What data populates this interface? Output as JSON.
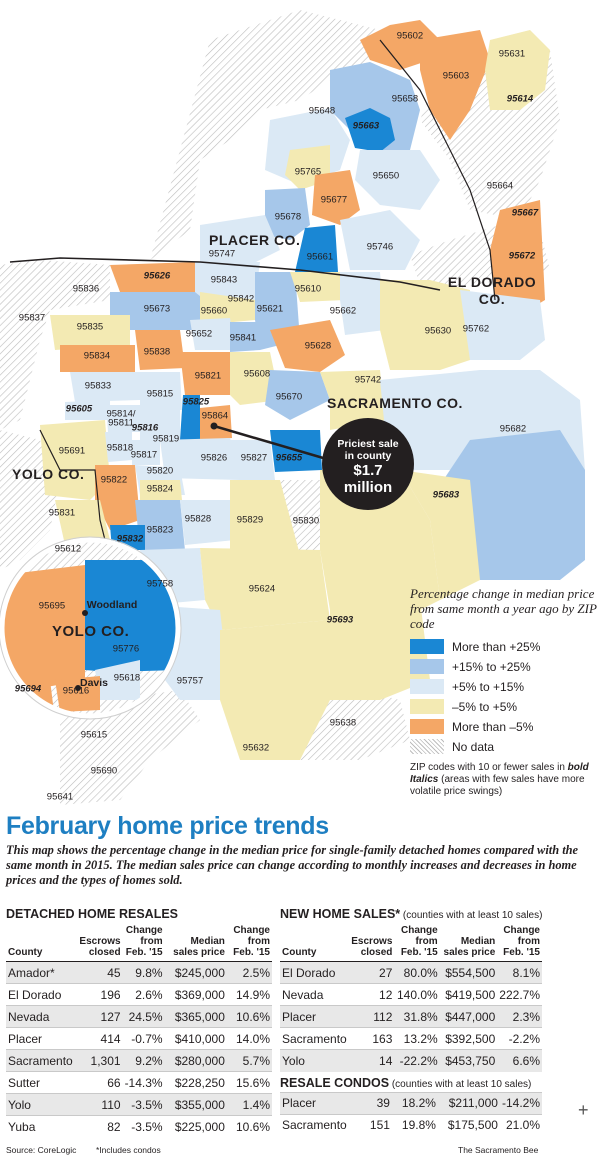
{
  "colors": {
    "more_than_25": "#1a87d4",
    "15_to_25": "#a6c7ea",
    "5_to_15": "#dbe9f5",
    "minus5_to_5": "#f3eab3",
    "more_than_minus5": "#f4a766",
    "no_data": "hatched",
    "headline": "#1e7fc2"
  },
  "map": {
    "counties": {
      "placer": "PLACER CO.",
      "el_dorado_1": "EL DORADO",
      "el_dorado_2": "CO.",
      "sacramento": "SACRAMENTO CO.",
      "yolo": "YOLO CO.",
      "yolo_inset": "YOLO CO."
    },
    "zips": [
      {
        "z": "95602",
        "bi": false
      },
      {
        "z": "95631",
        "bi": false
      },
      {
        "z": "95603",
        "bi": false
      },
      {
        "z": "95614",
        "bi": true
      },
      {
        "z": "95658",
        "bi": false
      },
      {
        "z": "95648",
        "bi": false
      },
      {
        "z": "95663",
        "bi": true
      },
      {
        "z": "95747",
        "bi": false
      },
      {
        "z": "95765",
        "bi": false
      },
      {
        "z": "95650",
        "bi": false
      },
      {
        "z": "95664",
        "bi": false
      },
      {
        "z": "95677",
        "bi": false
      },
      {
        "z": "95678",
        "bi": false
      },
      {
        "z": "95667",
        "bi": true
      },
      {
        "z": "95661",
        "bi": false
      },
      {
        "z": "95746",
        "bi": false
      },
      {
        "z": "95672",
        "bi": true
      },
      {
        "z": "95626",
        "bi": true
      },
      {
        "z": "95843",
        "bi": false
      },
      {
        "z": "95836",
        "bi": false
      },
      {
        "z": "95610",
        "bi": false
      },
      {
        "z": "95842",
        "bi": false
      },
      {
        "z": "95673",
        "bi": false
      },
      {
        "z": "95660",
        "bi": false
      },
      {
        "z": "95621",
        "bi": false
      },
      {
        "z": "95662",
        "bi": false
      },
      {
        "z": "95837",
        "bi": false
      },
      {
        "z": "95835",
        "bi": false
      },
      {
        "z": "95630",
        "bi": false
      },
      {
        "z": "95762",
        "bi": false
      },
      {
        "z": "95652",
        "bi": false
      },
      {
        "z": "95841",
        "bi": false
      },
      {
        "z": "95628",
        "bi": false
      },
      {
        "z": "95834",
        "bi": false
      },
      {
        "z": "95838",
        "bi": false
      },
      {
        "z": "95821",
        "bi": false
      },
      {
        "z": "95608",
        "bi": false
      },
      {
        "z": "95742",
        "bi": false
      },
      {
        "z": "95833",
        "bi": false
      },
      {
        "z": "95815",
        "bi": false
      },
      {
        "z": "95670",
        "bi": false
      },
      {
        "z": "95605",
        "bi": true
      },
      {
        "z": "95825",
        "bi": true
      },
      {
        "z": "95814/",
        "bi": false
      },
      {
        "z": "95811",
        "bi": false
      },
      {
        "z": "95864",
        "bi": false
      },
      {
        "z": "95816",
        "bi": true
      },
      {
        "z": "95819",
        "bi": false
      },
      {
        "z": "95682",
        "bi": false
      },
      {
        "z": "95691",
        "bi": false
      },
      {
        "z": "95818",
        "bi": false
      },
      {
        "z": "95817",
        "bi": false
      },
      {
        "z": "95826",
        "bi": false
      },
      {
        "z": "95827",
        "bi": false
      },
      {
        "z": "95655",
        "bi": true
      },
      {
        "z": "95820",
        "bi": false
      },
      {
        "z": "95822",
        "bi": false
      },
      {
        "z": "95824",
        "bi": false
      },
      {
        "z": "95683",
        "bi": true
      },
      {
        "z": "95831",
        "bi": false
      },
      {
        "z": "95828",
        "bi": false
      },
      {
        "z": "95829",
        "bi": false
      },
      {
        "z": "95830",
        "bi": false
      },
      {
        "z": "95823",
        "bi": false
      },
      {
        "z": "95832",
        "bi": true
      },
      {
        "z": "95612",
        "bi": false
      },
      {
        "z": "95758",
        "bi": false
      },
      {
        "z": "95624",
        "bi": false
      },
      {
        "z": "95693",
        "bi": true
      },
      {
        "z": "95757",
        "bi": false
      },
      {
        "z": "95638",
        "bi": false
      },
      {
        "z": "95632",
        "bi": false
      },
      {
        "z": "95615",
        "bi": false
      },
      {
        "z": "95690",
        "bi": false
      },
      {
        "z": "95641",
        "bi": false
      }
    ],
    "inset_zips": [
      {
        "z": "95695",
        "bi": false
      },
      {
        "z": "95776",
        "bi": false
      },
      {
        "z": "95618",
        "bi": false
      },
      {
        "z": "95694",
        "bi": true
      },
      {
        "z": "95616",
        "bi": false
      }
    ],
    "cities": {
      "woodland": "Woodland",
      "davis": "Davis"
    },
    "priciest": {
      "line1": "Priciest sale",
      "line2": "in county",
      "line3": "$1.7",
      "line4": "million"
    }
  },
  "legend": {
    "title": "Percentage change in median price from same month a year ago by ZIP code",
    "items": [
      {
        "label": "More than +25%",
        "color": "#1a87d4"
      },
      {
        "label": "+15% to +25%",
        "color": "#a6c7ea"
      },
      {
        "label": "+5% to +15%",
        "color": "#dbe9f5"
      },
      {
        "label": "–5% to +5%",
        "color": "#f3eab3"
      },
      {
        "label": "More than –5%",
        "color": "#f4a766"
      },
      {
        "label": "No data",
        "color": "hatched"
      }
    ],
    "note_pre": "ZIP codes with 10 or fewer sales in ",
    "note_bi": "bold Italics",
    "note_post": " (areas with few sales have more volatile price swings)"
  },
  "headline": "February home price trends",
  "dek": "This map shows the percentage change in the median price for single-family detached homes compared with the same month in 2015. The median sales price can change according to monthly increases and decreases in home prices and the types of homes sold.",
  "detached": {
    "title": "DETACHED HOME RESALES",
    "headers": [
      "County",
      "Escrows closed",
      "Change from Feb. '15",
      "Median sales price",
      "Change from Feb. '15"
    ],
    "rows": [
      [
        "Amador*",
        "45",
        "9.8%",
        "$245,000",
        "2.5%"
      ],
      [
        "El Dorado",
        "196",
        "2.6%",
        "$369,000",
        "14.9%"
      ],
      [
        "Nevada",
        "127",
        "24.5%",
        "$365,000",
        "10.6%"
      ],
      [
        "Placer",
        "414",
        "-0.7%",
        "$410,000",
        "14.0%"
      ],
      [
        "Sacramento",
        "1,301",
        "9.2%",
        "$280,000",
        "5.7%"
      ],
      [
        "Sutter",
        "66",
        "-14.3%",
        "$228,250",
        "15.6%"
      ],
      [
        "Yolo",
        "110",
        "-3.5%",
        "$355,000",
        "1.4%"
      ],
      [
        "Yuba",
        "82",
        "-3.5%",
        "$225,000",
        "10.6%"
      ]
    ]
  },
  "newhome": {
    "title": "NEW HOME SALES*",
    "subtitle": " (counties with at least 10 sales)",
    "headers": [
      "County",
      "Escrows closed",
      "Change from Feb. '15",
      "Median sales price",
      "Change from Feb. '15"
    ],
    "rows": [
      [
        "El Dorado",
        "27",
        "80.0%",
        "$554,500",
        "8.1%"
      ],
      [
        "Nevada",
        "12",
        "140.0%",
        "$419,500",
        "222.7%"
      ],
      [
        "Placer",
        "112",
        "31.8%",
        "$447,000",
        "2.3%"
      ],
      [
        "Sacramento",
        "163",
        "13.2%",
        "$392,500",
        "-2.2%"
      ],
      [
        "Yolo",
        "14",
        "-22.2%",
        "$453,750",
        "6.6%"
      ]
    ]
  },
  "condos": {
    "title": "RESALE CONDOS",
    "subtitle": " (counties with at least 10 sales)",
    "rows": [
      [
        "Placer",
        "39",
        "18.2%",
        "$211,000",
        "-14.2%"
      ],
      [
        "Sacramento",
        "151",
        "19.8%",
        "$175,500",
        "21.0%"
      ]
    ]
  },
  "footer": {
    "source": "Source: CoreLogic",
    "note": "*Includes condos",
    "credit": "The Sacramento Bee"
  }
}
